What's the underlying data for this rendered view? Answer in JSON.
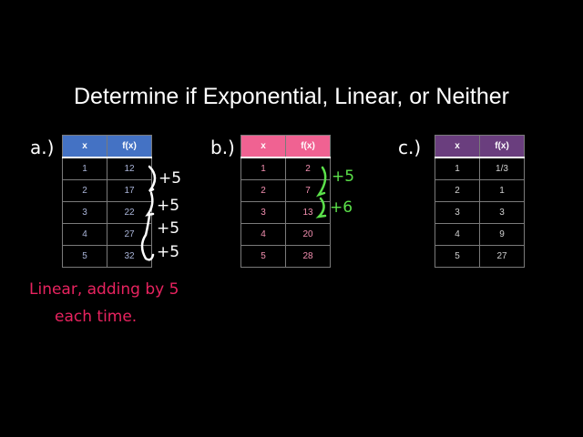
{
  "title": "Determine if Exponential, Linear, or Neither",
  "colors": {
    "table_a_header": "#4472c4",
    "table_b_header": "#f06292",
    "table_c_header": "#6a3e7e",
    "annotation_white": "#ffffff",
    "annotation_green": "#5be04a",
    "annotation_pink": "#e8235f",
    "table_a_text": "#a9b4d8",
    "table_b_text": "#f38fb0",
    "table_c_text": "#d0d0d0"
  },
  "tables": [
    {
      "label": "a.)",
      "headers": [
        "x",
        "f(x)"
      ],
      "rows": [
        [
          "1",
          "12"
        ],
        [
          "2",
          "17"
        ],
        [
          "3",
          "22"
        ],
        [
          "4",
          "27"
        ],
        [
          "5",
          "32"
        ]
      ]
    },
    {
      "label": "b.)",
      "headers": [
        "x",
        "f(x)"
      ],
      "rows": [
        [
          "1",
          "2"
        ],
        [
          "2",
          "7"
        ],
        [
          "3",
          "13"
        ],
        [
          "4",
          "20"
        ],
        [
          "5",
          "28"
        ]
      ]
    },
    {
      "label": "c.)",
      "headers": [
        "x",
        "f(x)"
      ],
      "rows": [
        [
          "1",
          "1/3"
        ],
        [
          "2",
          "1"
        ],
        [
          "3",
          "3"
        ],
        [
          "4",
          "9"
        ],
        [
          "5",
          "27"
        ]
      ]
    }
  ],
  "annotations": {
    "a_diffs": [
      "+5",
      "+5",
      "+5",
      "+5"
    ],
    "b_diffs": [
      "+5",
      "+6"
    ],
    "a_conclusion_line1": "Linear, adding by 5",
    "a_conclusion_line2": "each time."
  }
}
